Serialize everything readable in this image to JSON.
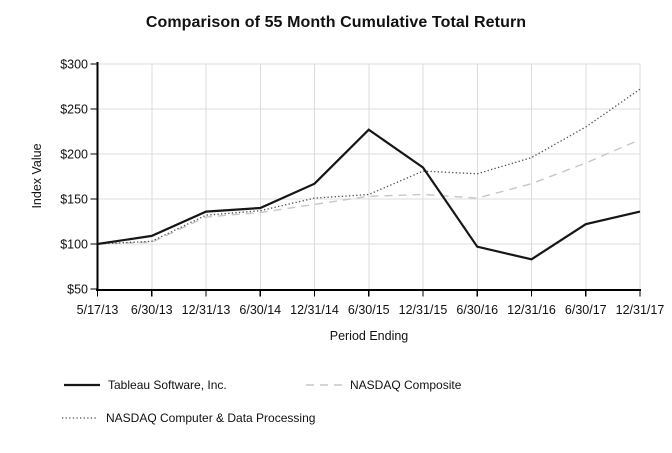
{
  "chart_data": {
    "type": "line",
    "title": "Comparison of 55 Month Cumulative Total Return",
    "xlabel": "Period Ending",
    "ylabel": "Index Value",
    "categories": [
      "5/17/13",
      "6/30/13",
      "12/31/13",
      "6/30/14",
      "12/31/14",
      "6/30/15",
      "12/31/15",
      "6/30/16",
      "12/31/16",
      "6/30/17",
      "12/31/17"
    ],
    "series": [
      {
        "name": "Tableau Software, Inc.",
        "style": "solid",
        "color": "#161616",
        "values": [
          100,
          109,
          136,
          140,
          167,
          227,
          185,
          97,
          83,
          122,
          136
        ]
      },
      {
        "name": "NASDAQ Composite",
        "style": "dashed",
        "color": "#c7c7c7",
        "values": [
          100,
          102,
          130,
          135,
          144,
          153,
          155,
          151,
          167,
          190,
          216
        ]
      },
      {
        "name": "NASDAQ Computer & Data Processing",
        "style": "dotted",
        "color": "#4d4d4d",
        "values": [
          100,
          103,
          132,
          137,
          151,
          155,
          181,
          178,
          196,
          230,
          272
        ]
      }
    ],
    "ylim": [
      50,
      300
    ],
    "y_tick_step": 50,
    "y_tick_prefix": "$",
    "grid": true,
    "legend_position": "bottom",
    "colors": {
      "grid": "#dcdcdc",
      "axis": "#000000",
      "text": "#111111",
      "background": "#ffffff"
    }
  }
}
